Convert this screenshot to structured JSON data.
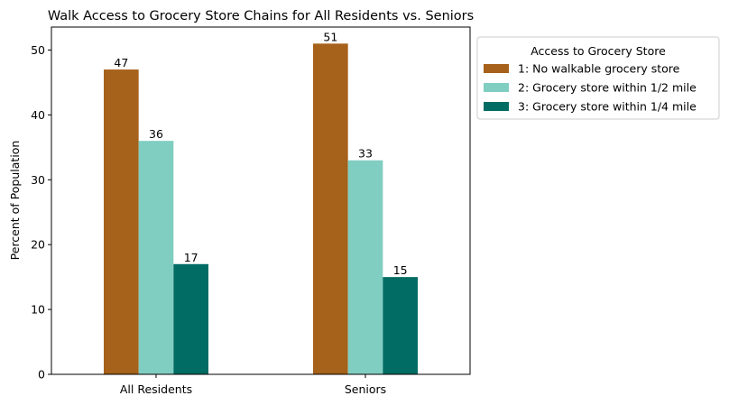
{
  "chart_data": {
    "type": "bar",
    "title": "Walk Access to Grocery Store Chains for All Residents vs. Seniors",
    "xlabel": "",
    "ylabel": "Percent of Population",
    "categories": [
      "All Residents",
      "Seniors"
    ],
    "series": [
      {
        "name": "1: No walkable grocery store",
        "values": [
          47,
          51
        ],
        "color": "#a6611a"
      },
      {
        "name": "2: Grocery store within 1/2 mile",
        "values": [
          36,
          33
        ],
        "color": "#80cdc1"
      },
      {
        "name": "3: Grocery store within 1/4 mile",
        "values": [
          17,
          15
        ],
        "color": "#016c63"
      }
    ],
    "ylim": [
      0,
      53.55
    ],
    "yticks": [
      0,
      10,
      20,
      30,
      40,
      50
    ],
    "grid": false,
    "legend": {
      "title": "Access to Grocery Store",
      "placement": "outside-right"
    },
    "data_labels": true
  }
}
